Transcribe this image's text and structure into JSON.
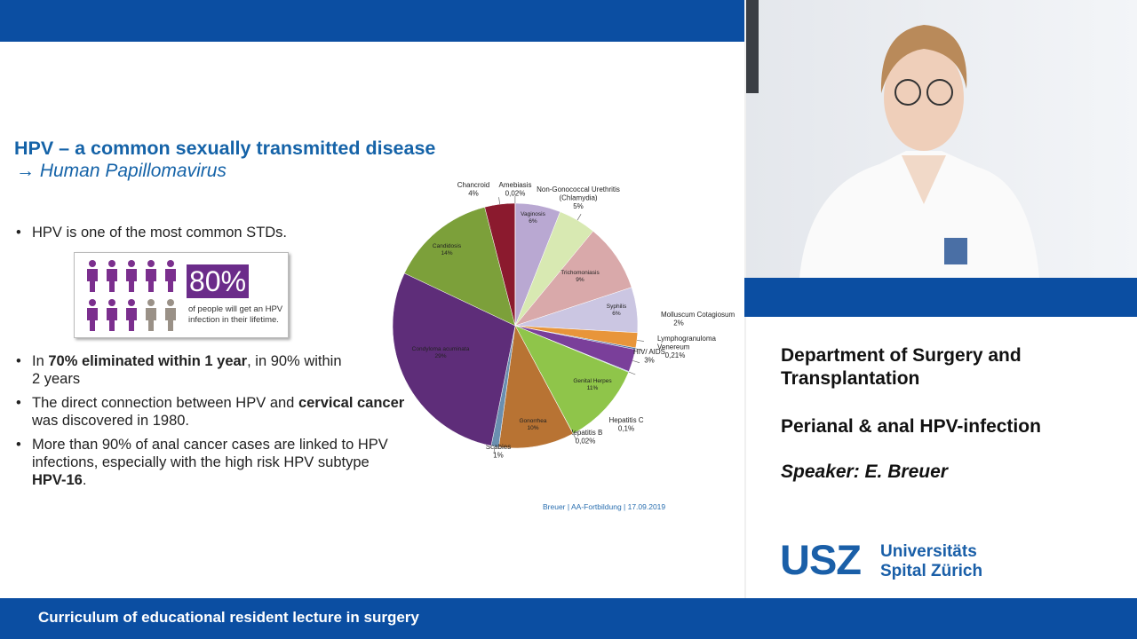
{
  "slide": {
    "title": "HPV – a common sexually transmitted disease",
    "subtitle": "→ Human Papillomavirus",
    "bullets": [
      [
        {
          "text": "HPV is one of the most common STDs."
        }
      ],
      [
        {
          "text": "In "
        },
        {
          "text": "70% eliminated within 1 year",
          "bold": true
        },
        {
          "text": ", in 90% within 2 years"
        }
      ],
      [
        {
          "text": "The direct connection between HPV and "
        },
        {
          "text": "cervical cancer",
          "bold": true
        },
        {
          "text": " was discovered in 1980."
        }
      ],
      [
        {
          "text": "More than 90% of anal cancer cases are linked to HPV infections, especially with the high risk HPV subtype "
        },
        {
          "text": "HPV-16",
          "bold": true
        },
        {
          "text": "."
        }
      ]
    ],
    "infographic": {
      "figure": "80%",
      "caption": "of people will get an HPV infection in their lifetime."
    },
    "footer": "Breuer | AA-Fortbildung | 17.09.2019"
  },
  "chart_data": {
    "type": "pie",
    "categories": [
      "Vaginosis",
      "Non-Gonococcal Urethritis (Chlamydia)",
      "Trichomoniasis",
      "Syphilis",
      "Molluscum Cotagiosum",
      "Lymphogranuloma Venereum",
      "HIV/ AIDS",
      "Hepatitis C",
      "Genital Herpes",
      "Hepatitis B",
      "Gonorrhea",
      "Scabies",
      "Condyloma acuminata",
      "Candidosis",
      "Chancroid",
      "Amebiasis"
    ],
    "values": [
      6,
      5,
      9,
      6,
      2,
      0.21,
      3,
      0.1,
      11,
      0.02,
      10,
      1,
      29,
      14,
      4,
      0.02
    ],
    "value_labels": [
      "6%",
      "5%",
      "9%",
      "6%",
      "2%",
      "0,21%",
      "3%",
      "0,1%",
      "11%",
      "0,02%",
      "10%",
      "1%",
      "29%",
      "14%",
      "4%",
      "0,02%"
    ],
    "colors": [
      "#b9a8d2",
      "#d8e9b2",
      "#d9a9aa",
      "#cbc6e2",
      "#e8953a",
      "#4a6fa5",
      "#7a3f9a",
      "#5da0c0",
      "#8fc54a",
      "#c8d0e0",
      "#b87333",
      "#6a8fb0",
      "#5e2d79",
      "#7ca03a",
      "#8b1a2e",
      "#d0d0d0"
    ]
  },
  "panel": {
    "department": "Department of Surgery and Transplantation",
    "topic": "Perianal & anal HPV-infection",
    "speaker": "Speaker: E. Breuer",
    "logo": {
      "mark": "USZ",
      "line1": "Universitäts",
      "line2": "Spital Zürich"
    }
  },
  "banner": "Curriculum of educational resident lecture in surgery"
}
